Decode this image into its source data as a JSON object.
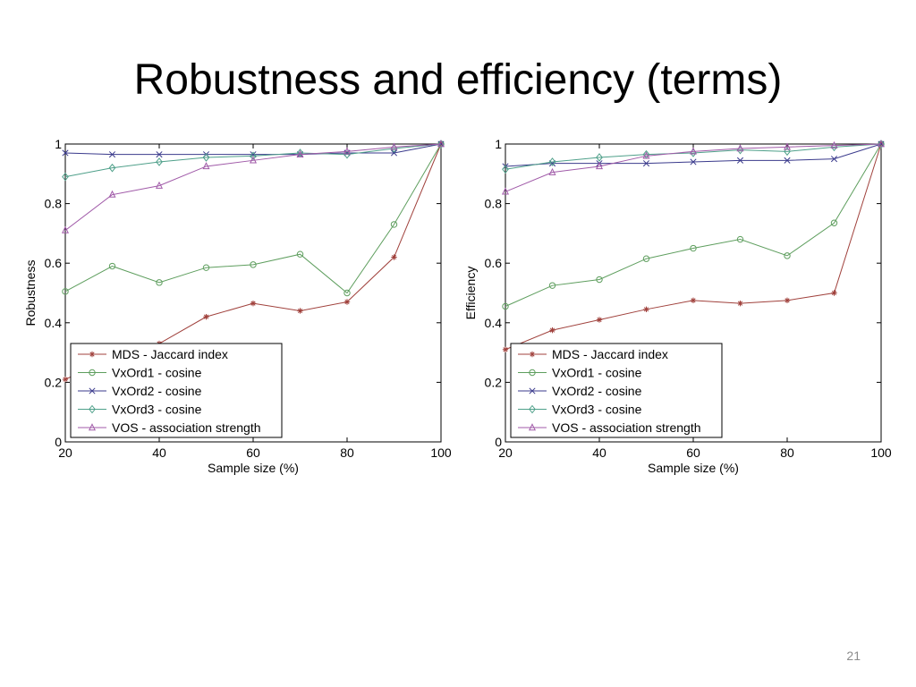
{
  "slide": {
    "title": "Robustness and efficiency (terms)",
    "page_number": "21"
  },
  "chart_data": [
    {
      "type": "line",
      "xlabel": "Sample size (%)",
      "ylabel": "Robustness",
      "xlim": [
        20,
        100
      ],
      "ylim": [
        0,
        1
      ],
      "xticks": [
        20,
        40,
        60,
        80,
        100
      ],
      "yticks": [
        0,
        0.2,
        0.4,
        0.6,
        0.8,
        1
      ],
      "legend_position": "bottom-left",
      "x": [
        20,
        30,
        40,
        50,
        60,
        70,
        80,
        90,
        100
      ],
      "series": [
        {
          "name": "MDS - Jaccard index",
          "marker": "star",
          "color": "#a0413c",
          "values": [
            0.21,
            0.28,
            0.33,
            0.42,
            0.465,
            0.44,
            0.47,
            0.62,
            1.0
          ]
        },
        {
          "name": "VxOrd1 - cosine",
          "marker": "circle",
          "color": "#5e9e5e",
          "values": [
            0.505,
            0.59,
            0.535,
            0.585,
            0.595,
            0.63,
            0.5,
            0.73,
            1.0
          ]
        },
        {
          "name": "VxOrd2 - cosine",
          "marker": "x",
          "color": "#3a3a8c",
          "values": [
            0.97,
            0.965,
            0.965,
            0.965,
            0.965,
            0.965,
            0.97,
            0.97,
            1.0
          ]
        },
        {
          "name": "VxOrd3 - cosine",
          "marker": "diamond",
          "color": "#4fa08a",
          "values": [
            0.89,
            0.92,
            0.94,
            0.955,
            0.96,
            0.97,
            0.965,
            0.985,
            1.0
          ]
        },
        {
          "name": "VOS - association strength",
          "marker": "triangle",
          "color": "#a05aa8",
          "values": [
            0.71,
            0.83,
            0.86,
            0.925,
            0.945,
            0.965,
            0.975,
            0.99,
            1.0
          ]
        }
      ]
    },
    {
      "type": "line",
      "xlabel": "Sample size (%)",
      "ylabel": "Efficiency",
      "xlim": [
        20,
        100
      ],
      "ylim": [
        0,
        1
      ],
      "xticks": [
        20,
        40,
        60,
        80,
        100
      ],
      "yticks": [
        0,
        0.2,
        0.4,
        0.6,
        0.8,
        1
      ],
      "legend_position": "bottom-left",
      "x": [
        20,
        30,
        40,
        50,
        60,
        70,
        80,
        90,
        100
      ],
      "series": [
        {
          "name": "MDS - Jaccard index",
          "marker": "star",
          "color": "#a0413c",
          "values": [
            0.31,
            0.375,
            0.41,
            0.445,
            0.475,
            0.465,
            0.475,
            0.5,
            1.0
          ]
        },
        {
          "name": "VxOrd1 - cosine",
          "marker": "circle",
          "color": "#5e9e5e",
          "values": [
            0.455,
            0.525,
            0.545,
            0.615,
            0.65,
            0.68,
            0.625,
            0.735,
            1.0
          ]
        },
        {
          "name": "VxOrd2 - cosine",
          "marker": "x",
          "color": "#3a3a8c",
          "values": [
            0.925,
            0.935,
            0.935,
            0.935,
            0.94,
            0.945,
            0.945,
            0.95,
            1.0
          ]
        },
        {
          "name": "VxOrd3 - cosine",
          "marker": "diamond",
          "color": "#4fa08a",
          "values": [
            0.915,
            0.94,
            0.955,
            0.965,
            0.97,
            0.98,
            0.975,
            0.99,
            1.0
          ]
        },
        {
          "name": "VOS - association strength",
          "marker": "triangle",
          "color": "#a05aa8",
          "values": [
            0.84,
            0.905,
            0.925,
            0.96,
            0.975,
            0.985,
            0.99,
            0.995,
            1.0
          ]
        }
      ]
    }
  ]
}
